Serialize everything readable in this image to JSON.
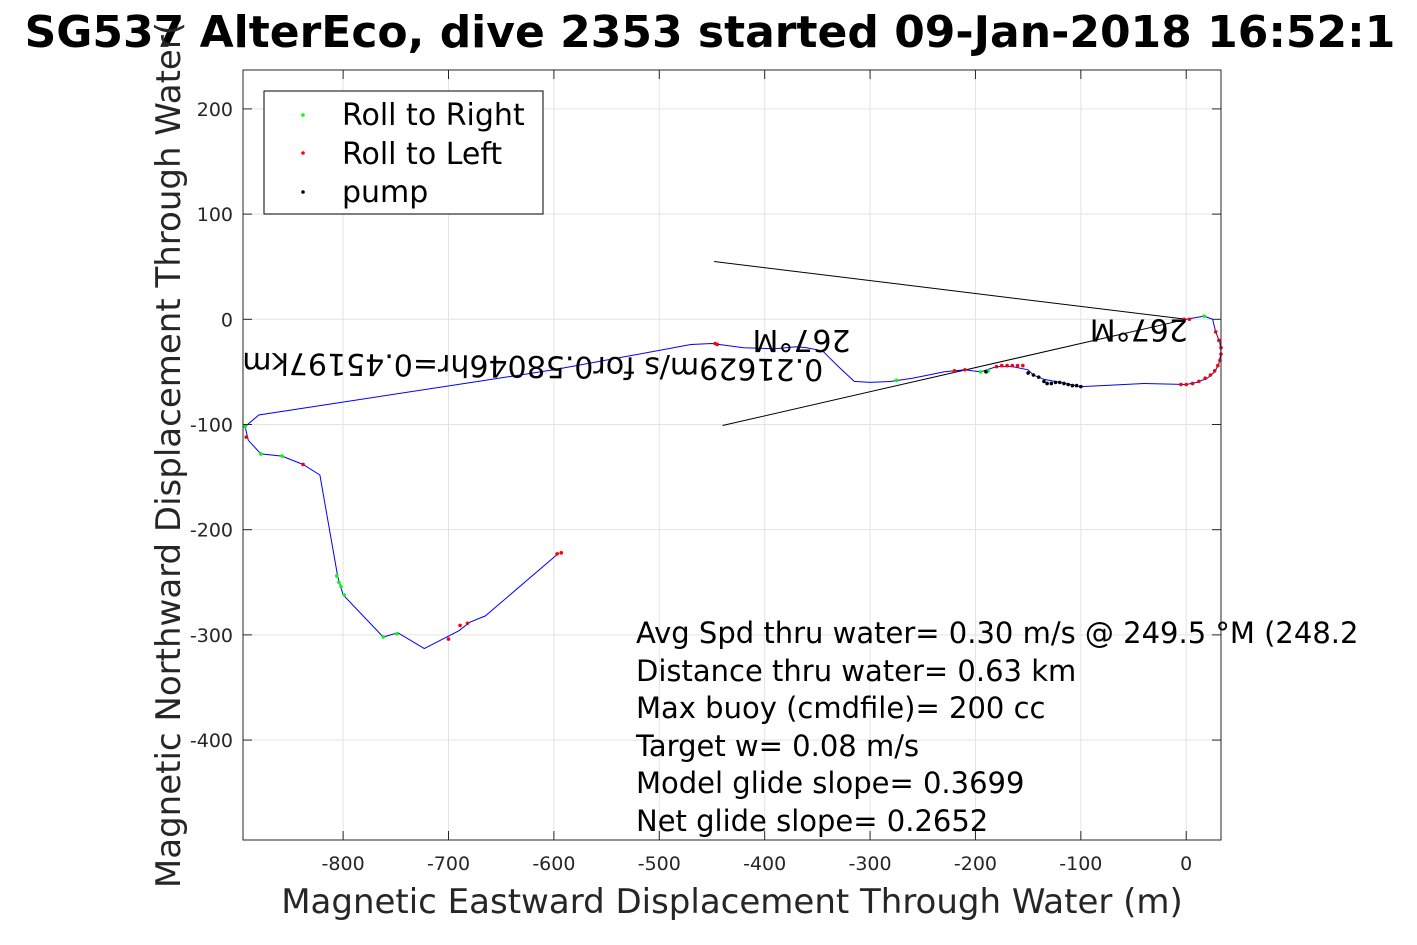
{
  "chart_data": {
    "type": "line",
    "title": "SG537 AlterEco, dive 2353 started 09-Jan-2018 16:52:1",
    "xlabel": "Magnetic Eastward Displacement Through Water (m)",
    "ylabel": "Magnetic Northward Displacement Through Water(",
    "xlim": [
      -895,
      33
    ],
    "ylim": [
      -495,
      237
    ],
    "xticks": [
      -800,
      -700,
      -600,
      -500,
      -400,
      -300,
      -200,
      -100,
      0
    ],
    "yticks": [
      200,
      100,
      0,
      -100,
      -200,
      -300,
      -400
    ],
    "xtick_labels": [
      "-800",
      "-700",
      "-600",
      "-500",
      "-400",
      "-300",
      "-200",
      "-100",
      "0"
    ],
    "ytick_labels": [
      "200",
      "100",
      "0",
      "-100",
      "-200",
      "-300",
      "-400"
    ],
    "grid": true,
    "legend": {
      "placement": "top-left",
      "entries": [
        {
          "label": "Roll to Right",
          "color": "#00ff00"
        },
        {
          "label": "Roll to Left",
          "color": "#ff0000"
        },
        {
          "label": "pump",
          "color": "#000000"
        }
      ]
    },
    "track_color": "#0000ff",
    "track": [
      [
        0,
        0
      ],
      [
        17,
        3
      ],
      [
        25,
        0
      ],
      [
        28,
        -12
      ],
      [
        32,
        -22
      ],
      [
        33,
        -32
      ],
      [
        31,
        -42
      ],
      [
        27,
        -50
      ],
      [
        20,
        -56
      ],
      [
        10,
        -60
      ],
      [
        0,
        -62
      ],
      [
        -40,
        -61
      ],
      [
        -80,
        -63
      ],
      [
        -100,
        -64
      ],
      [
        -110,
        -62
      ],
      [
        -120,
        -60
      ],
      [
        -135,
        -57
      ],
      [
        -145,
        -53
      ],
      [
        -150,
        -48
      ],
      [
        -165,
        -45
      ],
      [
        -180,
        -45
      ],
      [
        -195,
        -50
      ],
      [
        -210,
        -48
      ],
      [
        -230,
        -50
      ],
      [
        -245,
        -53
      ],
      [
        -260,
        -56
      ],
      [
        -280,
        -59
      ],
      [
        -300,
        -60
      ],
      [
        -315,
        -59
      ],
      [
        -330,
        -45
      ],
      [
        -345,
        -30
      ],
      [
        -360,
        -27
      ],
      [
        -370,
        -26
      ],
      [
        -390,
        -28
      ],
      [
        -420,
        -27
      ],
      [
        -450,
        -23
      ],
      [
        -470,
        -24
      ],
      [
        -600,
        -48
      ],
      [
        -880,
        -91
      ],
      [
        -893,
        -102
      ],
      [
        -890,
        -115
      ],
      [
        -878,
        -128
      ],
      [
        -858,
        -130
      ],
      [
        -838,
        -138
      ],
      [
        -822,
        -148
      ],
      [
        -805,
        -245
      ],
      [
        -800,
        -262
      ],
      [
        -762,
        -302
      ],
      [
        -748,
        -298
      ],
      [
        -723,
        -313
      ],
      [
        -690,
        -296
      ],
      [
        -680,
        -288
      ],
      [
        -665,
        -282
      ],
      [
        -595,
        -222
      ]
    ],
    "roll_right": [
      [
        17,
        3
      ],
      [
        -275,
        -58
      ],
      [
        -195,
        -50
      ],
      [
        -188,
        -49
      ],
      [
        -858,
        -130
      ],
      [
        -878,
        -128
      ],
      [
        -806,
        -244
      ],
      [
        -804,
        -250
      ],
      [
        -802,
        -254
      ],
      [
        -799,
        -262
      ],
      [
        -762,
        -302
      ],
      [
        -749,
        -299
      ],
      [
        -893,
        -102
      ]
    ],
    "roll_left": [
      [
        -2,
        0
      ],
      [
        3,
        0
      ],
      [
        28,
        -12
      ],
      [
        31,
        -20
      ],
      [
        33,
        -27
      ],
      [
        33,
        -33
      ],
      [
        32,
        -39
      ],
      [
        30,
        -44
      ],
      [
        27,
        -49
      ],
      [
        23,
        -53
      ],
      [
        18,
        -56
      ],
      [
        12,
        -59
      ],
      [
        6,
        -61
      ],
      [
        0,
        -62
      ],
      [
        -5,
        -62
      ],
      [
        -155,
        -44
      ],
      [
        -160,
        -44
      ],
      [
        -165,
        -44
      ],
      [
        -170,
        -44
      ],
      [
        -175,
        -44
      ],
      [
        -180,
        -45
      ],
      [
        -210,
        -48
      ],
      [
        -220,
        -49
      ],
      [
        -838,
        -138
      ],
      [
        -892,
        -112
      ],
      [
        -700,
        -304
      ],
      [
        -682,
        -289
      ],
      [
        -689,
        -291
      ],
      [
        -593,
        -222
      ],
      [
        -597,
        -223
      ],
      [
        -447,
        -23
      ],
      [
        -445,
        -24
      ]
    ],
    "pump": [
      [
        -100,
        -64
      ],
      [
        -104,
        -63
      ],
      [
        -108,
        -63
      ],
      [
        -112,
        -62
      ],
      [
        -116,
        -61
      ],
      [
        -120,
        -60
      ],
      [
        -124,
        -60
      ],
      [
        -128,
        -61
      ],
      [
        -132,
        -61
      ],
      [
        -135,
        -59
      ],
      [
        -140,
        -55
      ],
      [
        -145,
        -53
      ],
      [
        -150,
        -51
      ],
      [
        -190,
        -50
      ]
    ],
    "current_lines": [
      {
        "from": [
          0,
          0
        ],
        "to": [
          -448,
          55
        ]
      },
      {
        "from": [
          0,
          0
        ],
        "to": [
          -440,
          -101
        ]
      }
    ],
    "annotations": [
      {
        "text": "0.21629m/s for0.58046hr=0.45197km",
        "at": [
          -620,
          -35
        ],
        "rotate": 180.67
      },
      {
        "text": "267°M",
        "at": [
          -365,
          -10
        ],
        "rotate": 180
      },
      {
        "text": "267°M",
        "at": [
          -45,
          0
        ],
        "rotate": 180
      }
    ],
    "stats": [
      "Avg Spd thru water=  0.30 m/s @ 249.5 °M (248.2",
      "Distance thru water=  0.63 km",
      "Max buoy (cmdfile)= 200 cc",
      "Target w= 0.08 m/s",
      "Model glide slope= 0.3699",
      "Net glide slope= 0.2652"
    ]
  }
}
